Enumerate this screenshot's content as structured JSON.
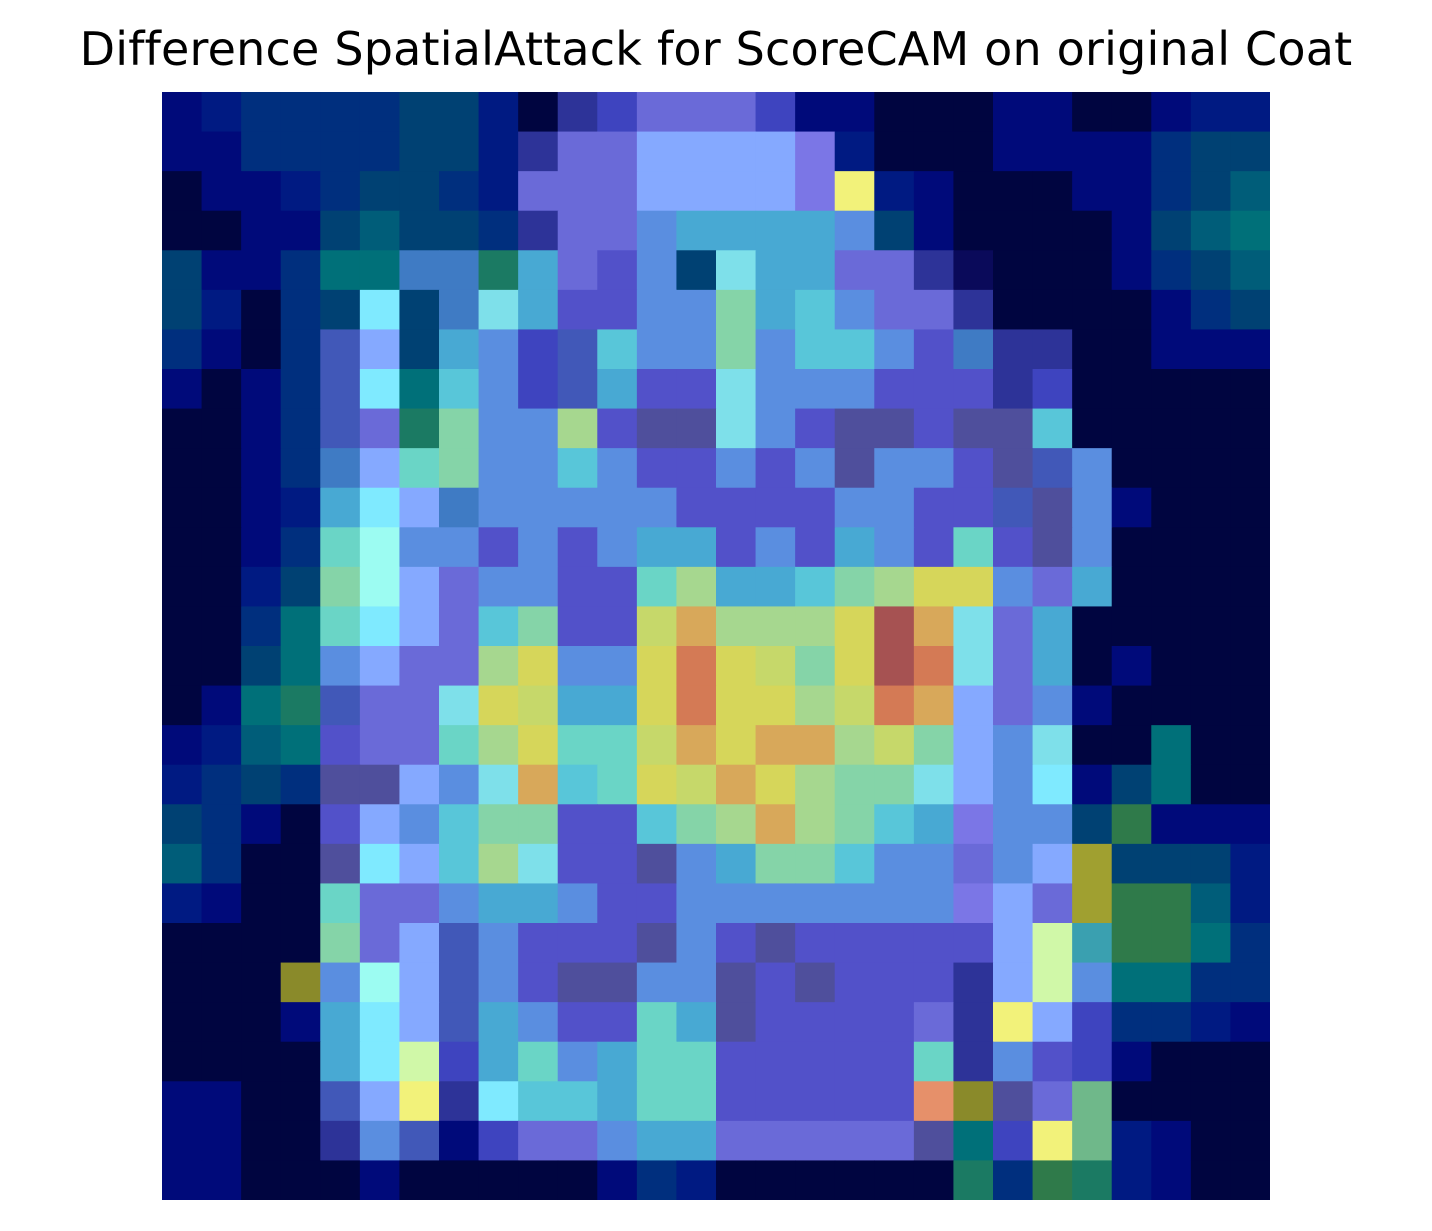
{
  "chart_data": {
    "type": "heatmap",
    "title": "Difference SpatialAttack for ScoreCAM on original Coat",
    "xlabel": "",
    "ylabel": "",
    "axes_visible": false,
    "grid": false,
    "rows": 28,
    "cols": 28,
    "description_of_colors": "jet colormap overlaid on a grayscale coat image",
    "palette": {
      "a": "#000a7a",
      "b": "#001a82",
      "c": "#002f7e",
      "d": "#004173",
      "e": "#005d79",
      "f": "#007079",
      "g": "#1b7a63",
      "h": "#2d3398",
      "i": "#3e44bf",
      "j": "#4158b8",
      "k": "#5251c9",
      "l": "#4f4f9c",
      "m": "#3f7bc4",
      "n": "#5a8ee0",
      "o": "#48a9d3",
      "p": "#58c6d9",
      "q": "#6ad5c6",
      "r": "#7ee0ea",
      "s": "#7feaff",
      "t": "#9cfcf2",
      "u": "#85d4a8",
      "v": "#a6d78f",
      "w": "#c6d86a",
      "x": "#d6d65a",
      "y": "#d8a85a",
      "z": "#d47a55",
      "A": "#a65252",
      "B": "#f2f27a",
      "C": "#85a9ff",
      "D": "#7b76e6",
      "E": "#000540",
      "F": "#0a0a5a",
      "G": "#6a6ad8",
      "H": "#2f7a4a",
      "I": "#8a8a2a",
      "J": "#a0a030",
      "K": "#3aa0b0",
      "L": "#e6906a",
      "M": "#d0f8a8",
      "N": "#6fb88a"
    },
    "grid_rows": [
      "abccccddbEhiGGGiaaEEEaaEEabb",
      "aaccccddbhGGCCCCDbEEEaaaacdd",
      "EaabcddcbGGGCCCCDBbaEEEaacde",
      "EEaadeddchGGnoooondaEEEEadef",
      "daacffmmgoGkndrooGGhFEEEacde",
      "dbEcdsdmrokknnuopnGGhEEEEacd",
      "caEcjCdonijpnnunppnkmhhEEaaa",
      "aEacjsfpnijokkrnnnkkkhiEEEEE",
      "EEacjGgunnvkllrnkllkllpEEEEE",
      "EEacmCqunnpnkknknlnnkljnEEEE",
      "EEabosCmnnnnnkkkknnkkjlnaEEE",
      "EEacqtnnknknooknkonkqklnEEEE",
      "EEbdutCGnnkkqvoopuvxxnGoEEEE",
      "EEcfqsCGpukkwyvvvxAyrGoEEEEE",
      "EEdfnCGGvxnnxzxwuxAzrGoEaEEE",
      "EafgjGGrxwooxzxxvwzyCGnaEEEE",
      "abefkGGqvxqqwyxyyvwuCnrEEfEE",
      "bcdcllCnrypqxwyxvuurCnsadfEE",
      "dcaEkCnpuukkpuvyvupoDnndHaaa",
      "ecEElsCpvrkklnouupnnGnCJdddb",
      "baEEqGGnoonkknnnnnnnDCGJHHeb",
      "EEEEuGCjnkkklnklkkkkkCMKHHfc",
      "EEEIntCjnkllnnlklkkkhCMnffcc",
      "EEEaosCjonkkqolkkkkGhBCiccba",
      "EEEEosMioqnoqqkkkkkqhnkiaEEE",
      "aaEEjCBhsppoqqkkkkkLIlGNEEEE",
      "aaEEhnjaiGGnooGGGGGlfiBNbaEE",
      "aaEEEaEEEEEacbEEEEEEgcHgbaEE"
    ]
  }
}
